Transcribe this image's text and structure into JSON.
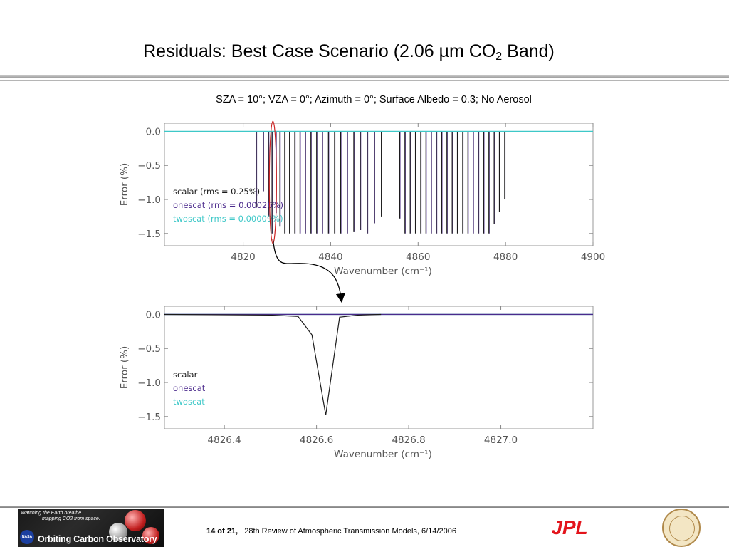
{
  "slide": {
    "title_main": "Residuals: Best Case Scenario (2.06 µm CO",
    "title_sub": "2",
    "title_end": " Band)",
    "subtitle": "SZA = 10°; VZA = 0°; Azimuth = 0°; Surface Albedo = 0.3; No Aerosol"
  },
  "footer": {
    "page_label": "14  of  21,",
    "meeting": "28th Review of Atmospheric Transmission Models, 6/14/2006",
    "oco_tagline_1": "Watching the Earth breathe...",
    "oco_tagline_2": "mapping CO2 from space.",
    "oco_name": "Orbiting Carbon Observatory",
    "nasa_label": "NASA",
    "jpl_label": "JPL"
  },
  "colors": {
    "scalar": "#1a1a1a",
    "onescat": "#4b2a8c",
    "twoscat": "#3ec8c8",
    "zoom_box": "#cc2222"
  },
  "chart_data": [
    {
      "type": "line",
      "xlabel": "Wavenumber (cm⁻¹)",
      "ylabel": "Error (%)",
      "xlim": [
        4802,
        4900
      ],
      "ylim": [
        -1.68,
        0.12
      ],
      "xticks": [
        4820,
        4840,
        4860,
        4880,
        4900
      ],
      "xtick_labels": [
        "4820",
        "4840",
        "4860",
        "4880",
        "4900"
      ],
      "yticks": [
        0.0,
        -0.5,
        -1.0,
        -1.5
      ],
      "ytick_labels": [
        "0.0",
        "−0.5",
        "−1.0",
        "−1.5"
      ],
      "legend_placement": "lower-left",
      "series": [
        {
          "name": "scalar (rms = 0.25%)"
        },
        {
          "name": "onescat (rms = 0.00026%)"
        },
        {
          "name": "twoscat (rms = 0.00009%)"
        }
      ],
      "absorption_lines": [
        {
          "x": 4823.0,
          "y": -1.12
        },
        {
          "x": 4824.6,
          "y": -0.88
        },
        {
          "x": 4825.8,
          "y": -1.25
        },
        {
          "x": 4826.6,
          "y": -1.5
        },
        {
          "x": 4827.5,
          "y": -1.2
        },
        {
          "x": 4828.4,
          "y": -1.4
        },
        {
          "x": 4829.5,
          "y": -1.5
        },
        {
          "x": 4830.6,
          "y": -1.5
        },
        {
          "x": 4831.8,
          "y": -1.5
        },
        {
          "x": 4833.0,
          "y": -1.5
        },
        {
          "x": 4834.2,
          "y": -1.5
        },
        {
          "x": 4835.5,
          "y": -1.5
        },
        {
          "x": 4836.8,
          "y": -1.5
        },
        {
          "x": 4838.1,
          "y": -1.5
        },
        {
          "x": 4839.5,
          "y": -1.5
        },
        {
          "x": 4840.9,
          "y": -1.5
        },
        {
          "x": 4842.3,
          "y": -1.5
        },
        {
          "x": 4843.8,
          "y": -1.5
        },
        {
          "x": 4845.3,
          "y": -1.48
        },
        {
          "x": 4846.8,
          "y": -1.45
        },
        {
          "x": 4848.4,
          "y": -1.5
        },
        {
          "x": 4850.0,
          "y": -1.35
        },
        {
          "x": 4851.6,
          "y": -1.25
        },
        {
          "x": 4855.8,
          "y": -1.28
        },
        {
          "x": 4857.0,
          "y": -1.5
        },
        {
          "x": 4858.2,
          "y": -1.5
        },
        {
          "x": 4859.4,
          "y": -1.5
        },
        {
          "x": 4860.6,
          "y": -1.5
        },
        {
          "x": 4861.8,
          "y": -1.5
        },
        {
          "x": 4863.0,
          "y": -1.5
        },
        {
          "x": 4864.2,
          "y": -1.5
        },
        {
          "x": 4865.4,
          "y": -1.5
        },
        {
          "x": 4866.6,
          "y": -1.5
        },
        {
          "x": 4867.8,
          "y": -1.5
        },
        {
          "x": 4869.0,
          "y": -1.5
        },
        {
          "x": 4870.2,
          "y": -1.5
        },
        {
          "x": 4871.4,
          "y": -1.5
        },
        {
          "x": 4872.6,
          "y": -1.5
        },
        {
          "x": 4873.8,
          "y": -1.5
        },
        {
          "x": 4875.0,
          "y": -1.5
        },
        {
          "x": 4876.2,
          "y": -1.5
        },
        {
          "x": 4877.4,
          "y": -1.36
        },
        {
          "x": 4878.6,
          "y": -1.18
        },
        {
          "x": 4879.8,
          "y": -1.0
        }
      ],
      "zoom_region": [
        4826.4,
        4827.2
      ]
    },
    {
      "type": "line",
      "xlabel": "Wavenumber (cm⁻¹)",
      "ylabel": "Error (%)",
      "xlim": [
        4826.27,
        4827.2
      ],
      "ylim": [
        -1.68,
        0.12
      ],
      "xticks": [
        4826.4,
        4826.6,
        4826.8,
        4827.0
      ],
      "xtick_labels": [
        "4826.4",
        "4826.6",
        "4826.8",
        "4827.0"
      ],
      "yticks": [
        0.0,
        -0.5,
        -1.0,
        -1.5
      ],
      "ytick_labels": [
        "0.0",
        "−0.5",
        "−1.0",
        "−1.5"
      ],
      "legend_placement": "lower-left",
      "series": [
        {
          "name": "scalar",
          "x": [
            4826.27,
            4826.5,
            4826.56,
            4826.59,
            4826.62,
            4826.65,
            4826.69,
            4826.74
          ],
          "y": [
            0.0,
            -0.01,
            -0.03,
            -0.3,
            -1.48,
            -0.04,
            -0.01,
            0.0
          ]
        },
        {
          "name": "onescat",
          "x": [
            4826.27,
            4827.2
          ],
          "y": [
            0.0,
            0.0
          ]
        },
        {
          "name": "twoscat",
          "x": [
            4826.27,
            4827.2
          ],
          "y": [
            0.0,
            0.0
          ]
        }
      ]
    }
  ]
}
